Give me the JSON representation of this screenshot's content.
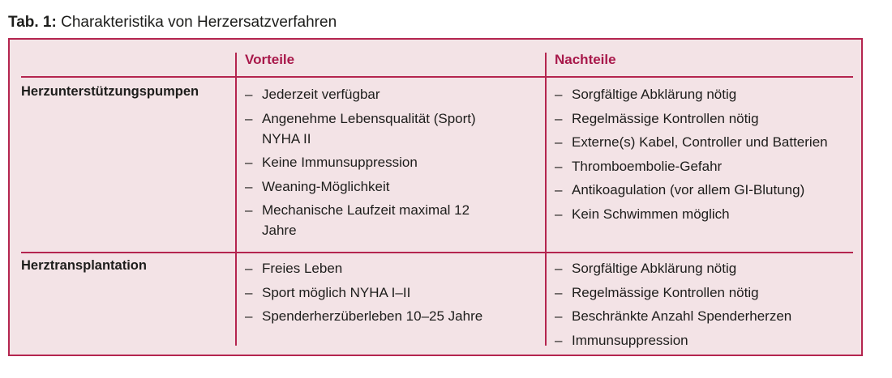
{
  "caption": {
    "label": "Tab. 1:",
    "title": "Charakteristika von Herzersatzverfahren"
  },
  "colors": {
    "accent": "#b4254f",
    "background": "#f3e3e6"
  },
  "columns": [
    "Vorteile",
    "Nachteile"
  ],
  "rows": [
    {
      "label": "Herzunterstützungspumpen",
      "vorteile": [
        "Jederzeit verfügbar",
        "Angenehme Lebensqualität (Sport) NYHA II",
        "Keine Immunsuppression",
        "Weaning-Möglichkeit",
        "Mechanische Laufzeit maximal 12 Jahre"
      ],
      "nachteile": [
        "Sorgfältige Abklärung nötig",
        "Regelmässige Kontrollen nötig",
        "Externe(s) Kabel, Controller und Batterien",
        "Thromboembolie-Gefahr",
        "Antikoagulation (vor allem GI-Blutung)",
        "Kein Schwimmen möglich"
      ]
    },
    {
      "label": "Herztransplantation",
      "vorteile": [
        "Freies Leben",
        "Sport möglich NYHA I–II",
        "Spenderherzüberleben 10–25 Jahre"
      ],
      "nachteile": [
        "Sorgfältige Abklärung nötig",
        "Regelmässige Kontrollen nötig",
        "Beschränkte Anzahl Spenderherzen",
        "Immunsuppression"
      ]
    }
  ],
  "dash": "–"
}
